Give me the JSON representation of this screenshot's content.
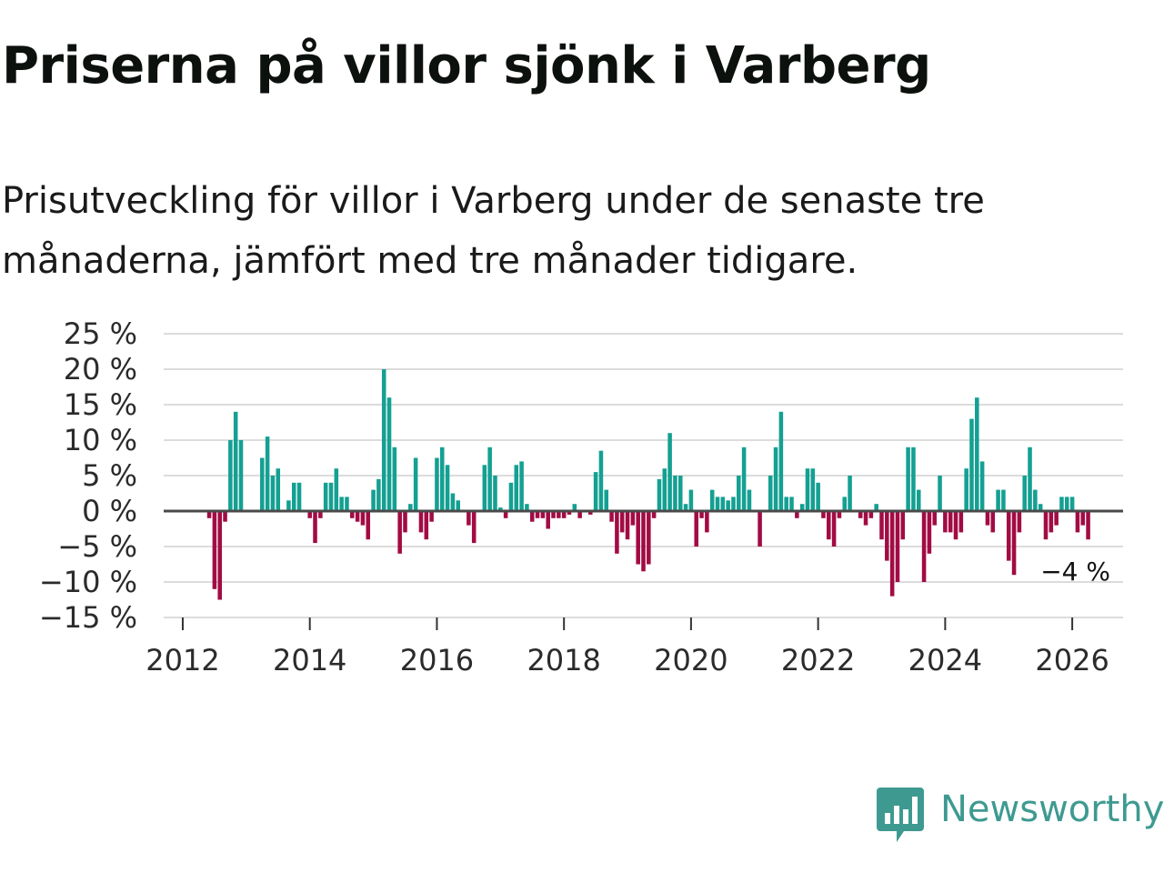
{
  "title": "Priserna på villor sjönk i Varberg",
  "subtitle": "Prisutveckling för villor i Varberg under de senaste tre månaderna, jämfört med tre månader tidigare.",
  "colors": {
    "positive": "#14a092",
    "negative": "#a20b43",
    "grid": "#dcdcdc",
    "zero": "#4a4a4a",
    "brand": "#3e9a91"
  },
  "brand": {
    "name": "Newsworthy",
    "icon": "bar-chart-speech-bubble-icon"
  },
  "chart_data": {
    "type": "bar",
    "title": "Priserna på villor sjönk i Varberg",
    "xlabel": "",
    "ylabel": "",
    "ylim": [
      -15,
      25
    ],
    "xlim": [
      2011.7,
      2026.8
    ],
    "yticks": [
      25,
      20,
      15,
      10,
      5,
      0,
      -5,
      -10,
      -15
    ],
    "ytick_labels": [
      "25 %",
      "20 %",
      "15 %",
      "10 %",
      "5 %",
      "0 %",
      "−5 %",
      "−10 %",
      "−15 %"
    ],
    "xticks": [
      2012,
      2014,
      2016,
      2018,
      2020,
      2022,
      2024,
      2026
    ],
    "xtick_labels": [
      "2012",
      "2014",
      "2016",
      "2018",
      "2020",
      "2022",
      "2024",
      "2026"
    ],
    "last_value_label": "−4 %",
    "start": {
      "year": 2012,
      "month": 6
    },
    "values": [
      -1,
      -11,
      -12.5,
      -1.5,
      10,
      14,
      10,
      0,
      0,
      0,
      7.5,
      10.5,
      5,
      6,
      0,
      1.5,
      4,
      4,
      0,
      -1,
      -4.5,
      -1,
      4,
      4,
      6,
      2,
      2,
      -1,
      -1.5,
      -2,
      -4,
      3,
      4.5,
      20,
      16,
      9,
      -6,
      -3,
      1,
      7.5,
      -3,
      -4,
      -1.5,
      7.5,
      9,
      6.5,
      2.5,
      1.5,
      0,
      -2,
      -4.5,
      0,
      6.5,
      9,
      5,
      0.5,
      -1,
      4,
      6.5,
      7,
      1,
      -1.5,
      -1,
      -1,
      -2.5,
      -1,
      -1,
      -1,
      -0.5,
      1,
      -1,
      0,
      -0.5,
      5.5,
      8.5,
      3,
      -1.5,
      -6,
      -3,
      -4,
      -2,
      -7.5,
      -8.5,
      -7.5,
      -1,
      4.5,
      6,
      11,
      5,
      5,
      1,
      3,
      -5,
      -1,
      -3,
      3,
      2,
      2,
      1.5,
      2,
      5,
      9,
      3,
      0,
      -5,
      0,
      5,
      9,
      14,
      2,
      2,
      -1,
      1,
      6,
      6,
      4,
      -1,
      -4,
      -5,
      -1,
      2,
      5,
      0,
      -1,
      -2,
      -1,
      1,
      -4,
      -7,
      -12,
      -10,
      -4,
      9,
      9,
      3,
      -10,
      -6,
      -2,
      5,
      -3,
      -3,
      -4,
      -3,
      6,
      13,
      16,
      7,
      -2,
      -3,
      3,
      3,
      -7,
      -9,
      -3,
      5,
      9,
      3,
      1,
      -4,
      -3,
      -2,
      2,
      2,
      2,
      -3,
      -2,
      -4
    ]
  }
}
